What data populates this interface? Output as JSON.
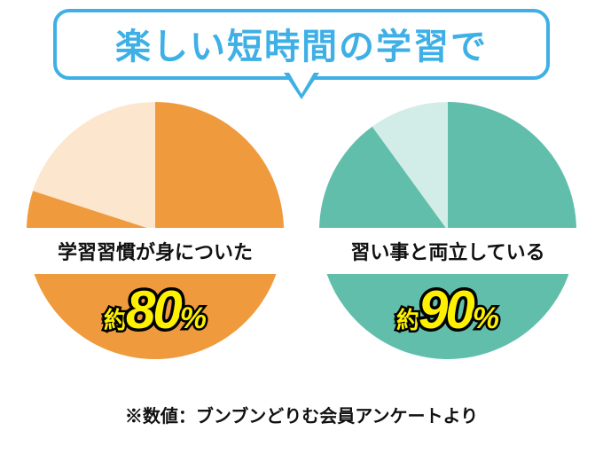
{
  "background_color": "#ffffff",
  "banner": {
    "text": "楽しい短時間の学習で",
    "text_color": "#3eb0e6",
    "border_color": "#3eb0e6",
    "border_radius": 18,
    "fontsize": 40,
    "fill": "#ffffff"
  },
  "charts": [
    {
      "type": "pie",
      "label": "学習習慣が身についた",
      "label_fontsize": 22,
      "approx_prefix": "約",
      "percent_value": 80,
      "percent_symbol": "%",
      "percent_fontsize": 60,
      "approx_fontsize": 26,
      "symbol_fontsize": 34,
      "slice_main_color": "#f09a3e",
      "slice_rest_color": "#fce6cd",
      "slice_main_pct": 80,
      "strip_color": "#ffffff",
      "start_angle_deg": 0
    },
    {
      "type": "pie",
      "label": "習い事と両立している",
      "label_fontsize": 22,
      "approx_prefix": "約",
      "percent_value": 90,
      "percent_symbol": "%",
      "percent_fontsize": 60,
      "approx_fontsize": 26,
      "symbol_fontsize": 34,
      "slice_main_color": "#61beab",
      "slice_rest_color": "#d2ede7",
      "slice_main_pct": 90,
      "strip_color": "#ffffff",
      "start_angle_deg": 0
    }
  ],
  "percent_text_fill": "#fdf100",
  "percent_text_stroke": "#000000",
  "footnote": {
    "text": "※数値：ブンブンどりむ会員アンケートより",
    "fontsize": 20,
    "color": "#111111"
  }
}
